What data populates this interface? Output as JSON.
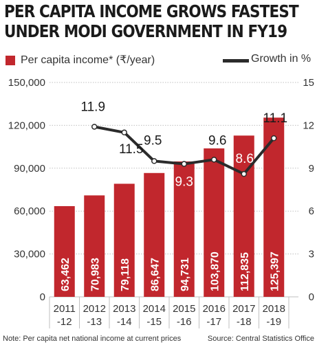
{
  "title_lines": [
    "PER CAPITA INCOME GROWS FASTEST",
    "UNDER MODI GOVERNMENT IN FY19"
  ],
  "footer": {
    "note": "Note: Per capita net national income at current prices",
    "source": "Source: Central Statistics Office"
  },
  "colors": {
    "bar": "#c1272d",
    "line": "#2b2b2b",
    "grid": "#bfbfbf"
  },
  "chart_data": {
    "type": "bar",
    "categories": [
      [
        "2011",
        "-12"
      ],
      [
        "2012",
        "-13"
      ],
      [
        "2013",
        "-14"
      ],
      [
        "2014",
        "-15"
      ],
      [
        "2015",
        "-16"
      ],
      [
        "2016",
        "-17"
      ],
      [
        "2017",
        "-18"
      ],
      [
        "2018",
        "-19"
      ]
    ],
    "series": [
      {
        "name": "Per capita income* (₹/year)",
        "type": "bar",
        "axis": "left",
        "values": [
          63462,
          70983,
          79118,
          86647,
          94731,
          103870,
          112835,
          125397
        ],
        "labels": [
          "63,462",
          "70,983",
          "79,118",
          "86,647",
          "94,731",
          "103,870",
          "112,835",
          "125,397"
        ]
      },
      {
        "name": "Growth in %",
        "type": "line",
        "axis": "right",
        "values": [
          null,
          11.9,
          11.5,
          9.5,
          9.3,
          9.6,
          8.6,
          11.1
        ],
        "labels": [
          "",
          "11.9",
          "11.5",
          "9.5",
          "9.3",
          "9.6",
          "8.6",
          "11.1"
        ]
      }
    ],
    "left_axis": {
      "ylim": [
        0,
        150000
      ],
      "ticks": [
        0,
        30000,
        60000,
        90000,
        120000,
        150000
      ],
      "tick_labels": [
        "0",
        "30,000",
        "60,000",
        "90,000",
        "120,000",
        "150,000"
      ]
    },
    "right_axis": {
      "ylim": [
        0,
        15
      ],
      "ticks": [
        0,
        3,
        6,
        9,
        12,
        15
      ],
      "tick_labels": [
        "0",
        "3",
        "6",
        "9",
        "12",
        "15"
      ]
    },
    "grid": true,
    "legend_position": "top"
  }
}
